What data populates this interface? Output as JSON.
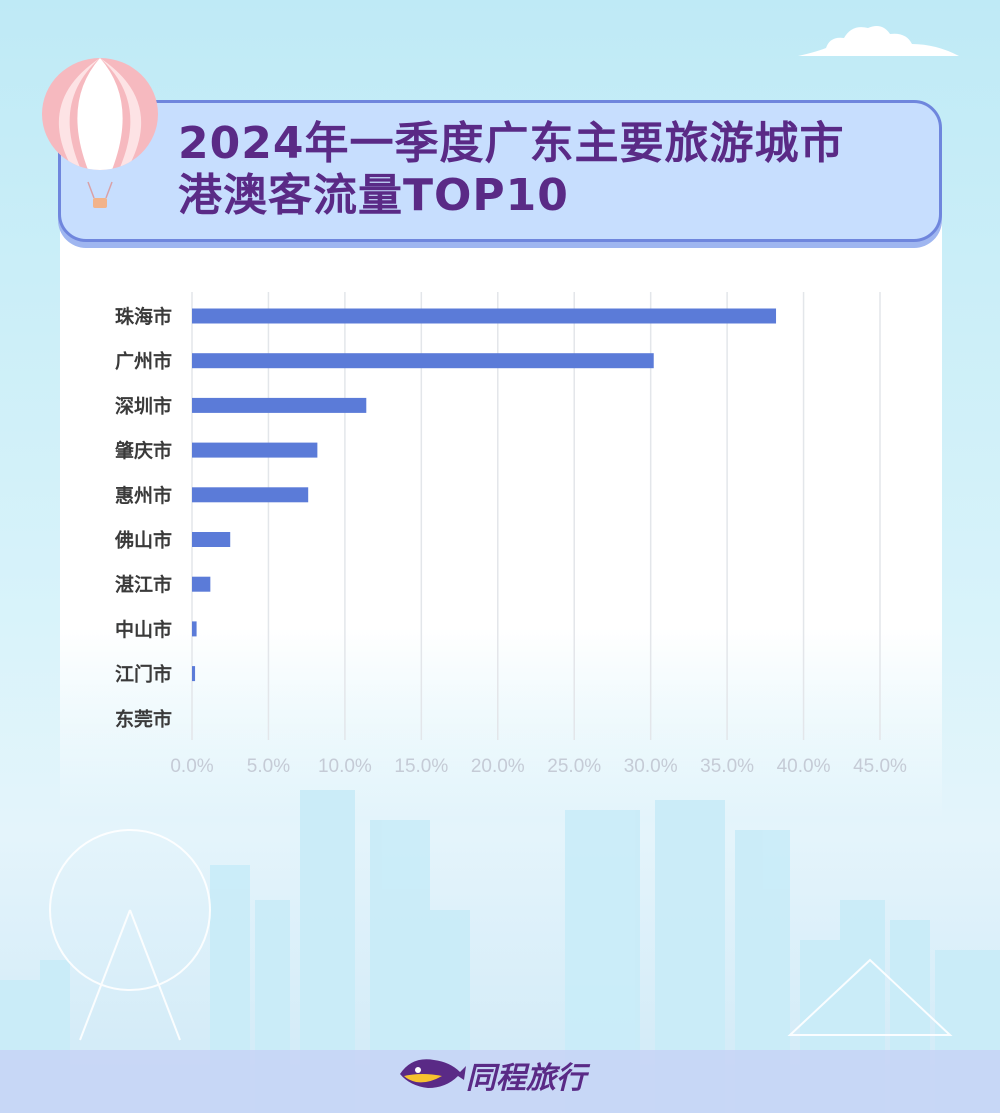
{
  "header": {
    "title_line1": "2024年一季度广东主要旅游城市",
    "title_line2": "港澳客流量TOP10"
  },
  "brand": {
    "logo_text": "同程旅行",
    "logo_icon": "fish-logo-icon"
  },
  "colors": {
    "bar": "#5b7bd8",
    "title": "#5a2a86",
    "grid": "#e3e6ea",
    "banner": "#c7defe"
  },
  "chart_data": {
    "type": "bar",
    "orientation": "horizontal",
    "title": "2024年一季度广东主要旅游城市港澳客流量TOP10",
    "categories": [
      "珠海市",
      "广州市",
      "深圳市",
      "肇庆市",
      "惠州市",
      "佛山市",
      "湛江市",
      "中山市",
      "江门市",
      "东莞市"
    ],
    "values": [
      38.2,
      30.2,
      11.4,
      8.2,
      7.6,
      2.5,
      1.2,
      0.3,
      0.2,
      0.0
    ],
    "value_unit": "%",
    "xlim": [
      0,
      45
    ],
    "x_ticks": [
      "0.0%",
      "5.0%",
      "10.0%",
      "15.0%",
      "20.0%",
      "25.0%",
      "30.0%",
      "35.0%",
      "40.0%",
      "45.0%"
    ],
    "xlabel": "",
    "ylabel": "",
    "grid": "vertical",
    "legend": "none"
  }
}
